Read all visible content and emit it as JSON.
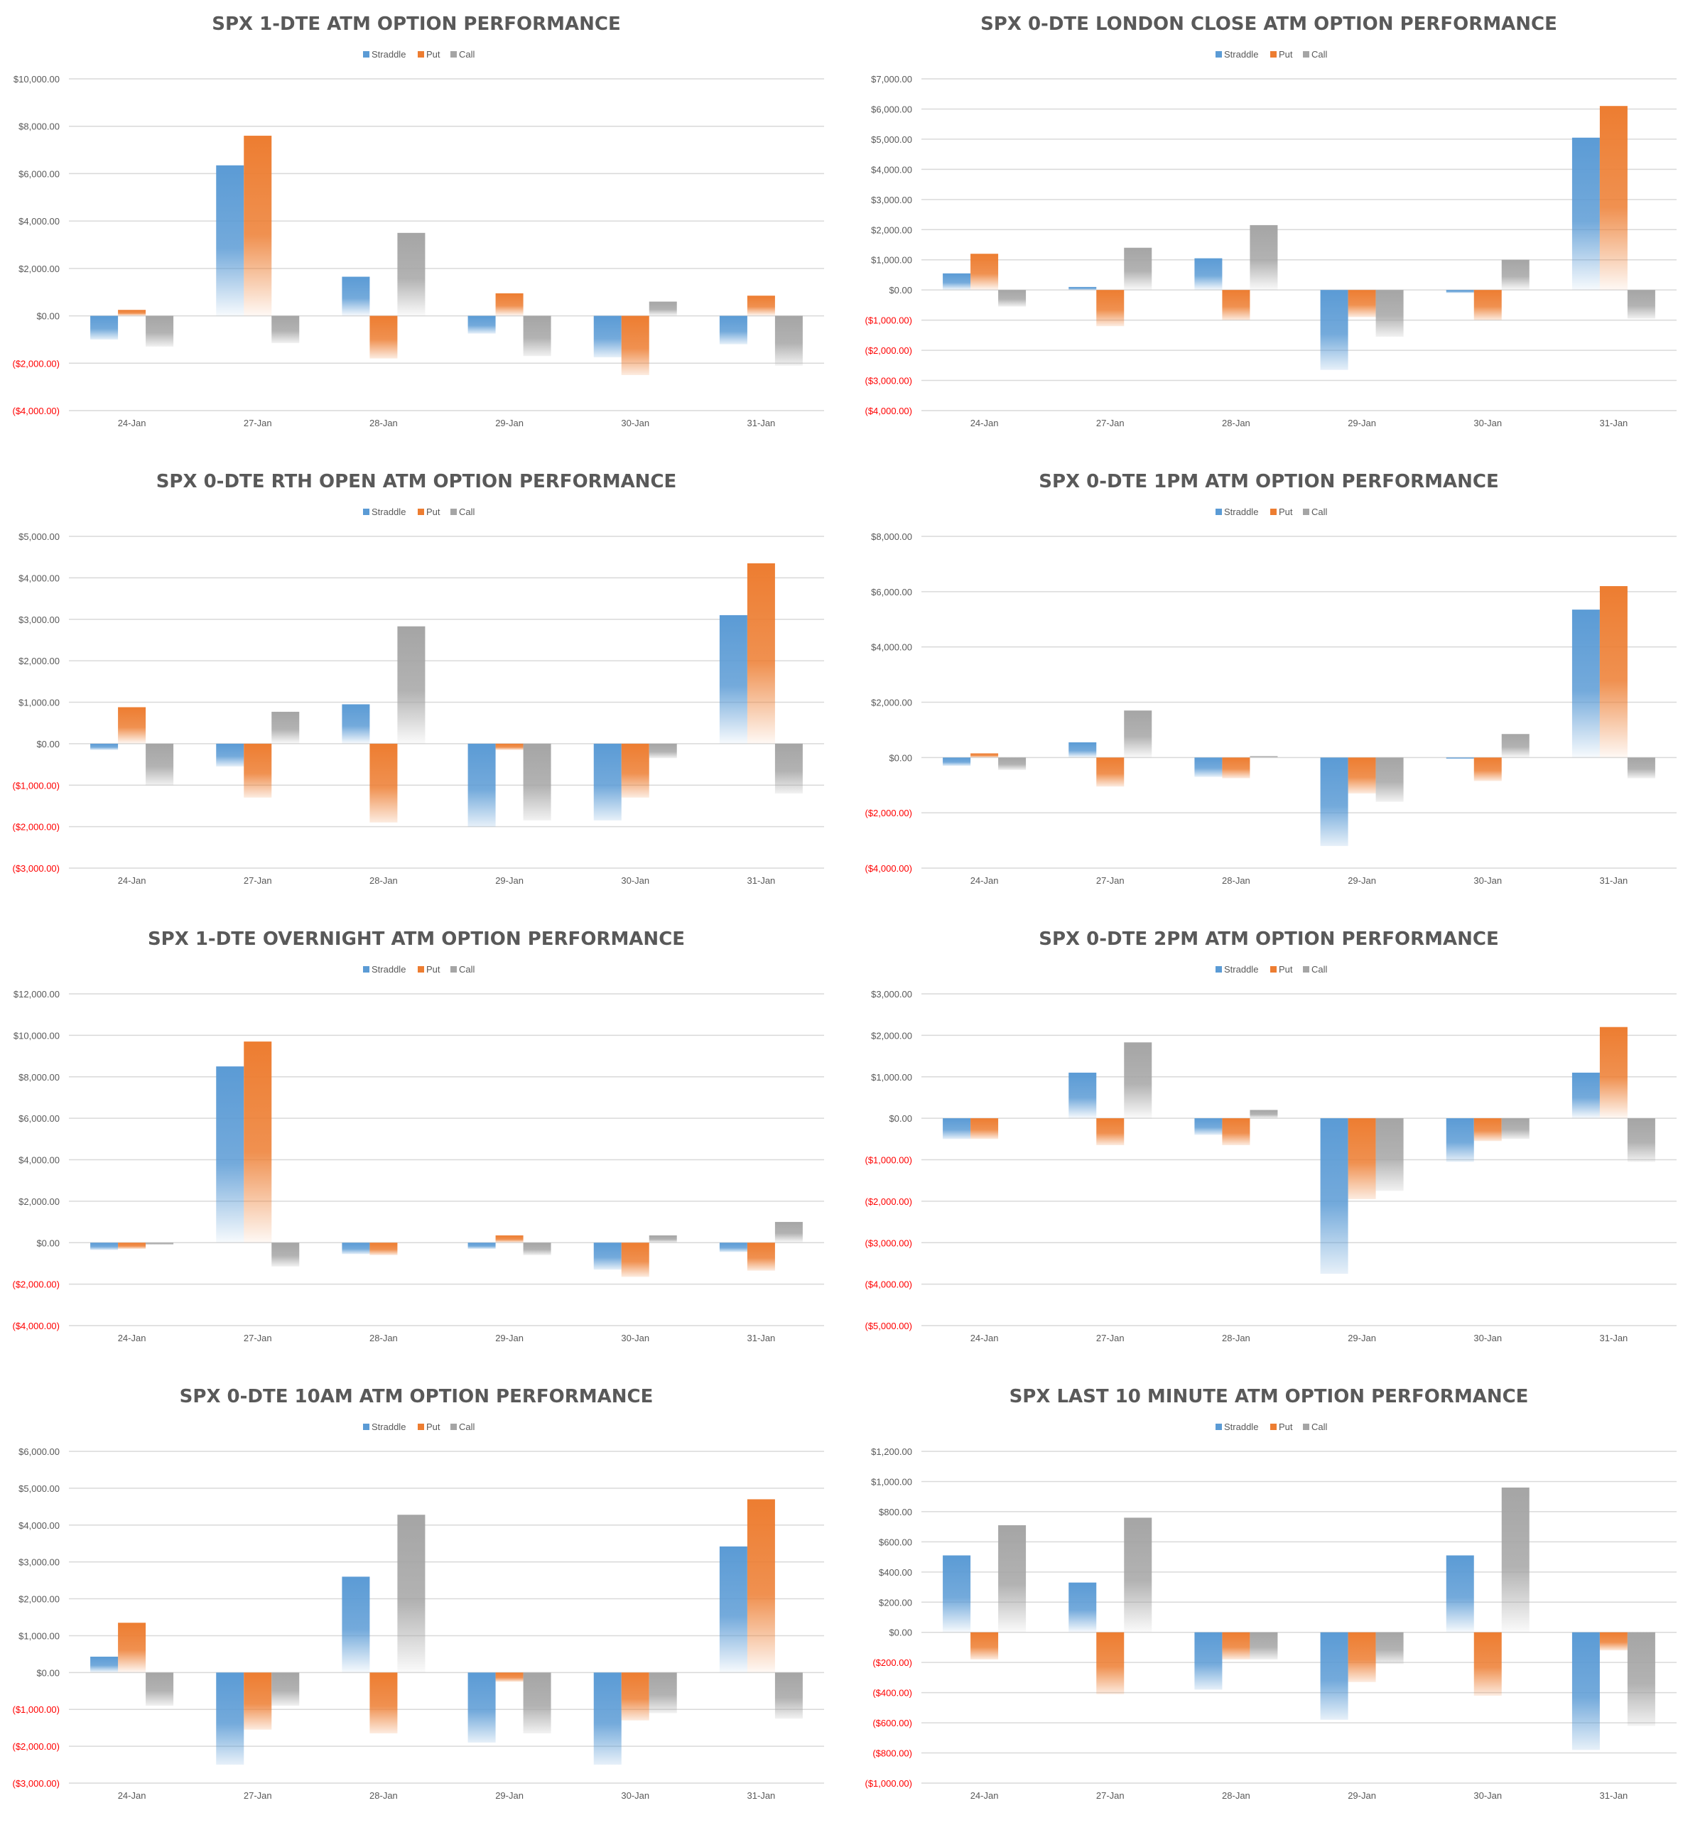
{
  "colors": {
    "straddle": "#5b9bd5",
    "put": "#ed7d31",
    "call": "#a5a5a5",
    "grid": "#d9d9d9",
    "negative_tick": "#ff0000",
    "text": "#595959"
  },
  "chart_data": [
    {
      "type": "bar",
      "title": "SPX 1-DTE ATM OPTION PERFORMANCE",
      "legend": [
        "Straddle",
        "Put",
        "Call"
      ],
      "categories": [
        "24-Jan",
        "27-Jan",
        "28-Jan",
        "29-Jan",
        "30-Jan",
        "31-Jan"
      ],
      "series": [
        {
          "name": "Straddle",
          "values": [
            -1000,
            6350,
            1650,
            -750,
            -1750,
            -1200
          ]
        },
        {
          "name": "Put",
          "values": [
            250,
            7600,
            -1800,
            950,
            -2500,
            850
          ]
        },
        {
          "name": "Call",
          "values": [
            -1300,
            -1150,
            3500,
            -1700,
            600,
            -2100
          ]
        }
      ],
      "ylim": [
        -4000,
        10000
      ],
      "yticks": [
        10000,
        8000,
        6000,
        4000,
        2000,
        0,
        -2000,
        -4000
      ],
      "ytick_labels": [
        "$10,000.00",
        "$8,000.00",
        "$6,000.00",
        "$4,000.00",
        "$2,000.00",
        "$0.00",
        "($2,000.00)",
        "($4,000.00)"
      ],
      "legend_position": "top-center"
    },
    {
      "type": "bar",
      "title": "SPX 0-DTE  LONDON CLOSE ATM OPTION PERFORMANCE",
      "legend": [
        "Straddle",
        "Put",
        "Call"
      ],
      "categories": [
        "24-Jan",
        "27-Jan",
        "28-Jan",
        "29-Jan",
        "30-Jan",
        "31-Jan"
      ],
      "series": [
        {
          "name": "Straddle",
          "values": [
            550,
            100,
            1050,
            -2650,
            -100,
            5050
          ]
        },
        {
          "name": "Put",
          "values": [
            1200,
            -1200,
            -1000,
            -900,
            -1000,
            6100
          ]
        },
        {
          "name": "Call",
          "values": [
            -550,
            1400,
            2150,
            -1550,
            1000,
            -950
          ]
        }
      ],
      "ylim": [
        -4000,
        7000
      ],
      "yticks": [
        7000,
        6000,
        5000,
        4000,
        3000,
        2000,
        1000,
        0,
        -1000,
        -2000,
        -3000,
        -4000
      ],
      "ytick_labels": [
        "$7,000.00",
        "$6,000.00",
        "$5,000.00",
        "$4,000.00",
        "$3,000.00",
        "$2,000.00",
        "$1,000.00",
        "$0.00",
        "($1,000.00)",
        "($2,000.00)",
        "($3,000.00)",
        "($4,000.00)"
      ],
      "legend_position": "top-center"
    },
    {
      "type": "bar",
      "title": "SPX 0-DTE RTH OPEN ATM OPTION PERFORMANCE",
      "legend": [
        "Straddle",
        "Put",
        "Call"
      ],
      "categories": [
        "24-Jan",
        "27-Jan",
        "28-Jan",
        "29-Jan",
        "30-Jan",
        "31-Jan"
      ],
      "series": [
        {
          "name": "Straddle",
          "values": [
            -150,
            -550,
            950,
            -2000,
            -1850,
            3100
          ]
        },
        {
          "name": "Put",
          "values": [
            880,
            -1300,
            -1900,
            -150,
            -1300,
            4350
          ]
        },
        {
          "name": "Call",
          "values": [
            -1000,
            770,
            2830,
            -1850,
            -350,
            -1200
          ]
        }
      ],
      "ylim": [
        -3000,
        5000
      ],
      "yticks": [
        5000,
        4000,
        3000,
        2000,
        1000,
        0,
        -1000,
        -2000,
        -3000
      ],
      "ytick_labels": [
        "$5,000.00",
        "$4,000.00",
        "$3,000.00",
        "$2,000.00",
        "$1,000.00",
        "$0.00",
        "($1,000.00)",
        "($2,000.00)",
        "($3,000.00)"
      ],
      "legend_position": "top-center"
    },
    {
      "type": "bar",
      "title": "SPX 0-DTE 1PM ATM OPTION PERFORMANCE",
      "legend": [
        "Straddle",
        "Put",
        "Call"
      ],
      "categories": [
        "24-Jan",
        "27-Jan",
        "28-Jan",
        "29-Jan",
        "30-Jan",
        "31-Jan"
      ],
      "series": [
        {
          "name": "Straddle",
          "values": [
            -300,
            550,
            -700,
            -3200,
            -50,
            5350
          ]
        },
        {
          "name": "Put",
          "values": [
            150,
            -1050,
            -750,
            -1300,
            -850,
            6200
          ]
        },
        {
          "name": "Call",
          "values": [
            -450,
            1700,
            50,
            -1600,
            850,
            -750
          ]
        }
      ],
      "ylim": [
        -4000,
        8000
      ],
      "yticks": [
        8000,
        6000,
        4000,
        2000,
        0,
        -2000,
        -4000
      ],
      "ytick_labels": [
        "$8,000.00",
        "$6,000.00",
        "$4,000.00",
        "$2,000.00",
        "$0.00",
        "($2,000.00)",
        "($4,000.00)"
      ],
      "legend_position": "top-center"
    },
    {
      "type": "bar",
      "title": "SPX 1-DTE OVERNIGHT ATM OPTION PERFORMANCE",
      "legend": [
        "Straddle",
        "Put",
        "Call"
      ],
      "categories": [
        "24-Jan",
        "27-Jan",
        "28-Jan",
        "29-Jan",
        "30-Jan",
        "31-Jan"
      ],
      "series": [
        {
          "name": "Straddle",
          "values": [
            -350,
            8500,
            -550,
            -300,
            -1300,
            -450
          ]
        },
        {
          "name": "Put",
          "values": [
            -300,
            9700,
            -600,
            350,
            -1650,
            -1350
          ]
        },
        {
          "name": "Call",
          "values": [
            -100,
            -1150,
            0,
            -600,
            350,
            1000
          ]
        }
      ],
      "ylim": [
        -4000,
        12000
      ],
      "yticks": [
        12000,
        10000,
        8000,
        6000,
        4000,
        2000,
        0,
        -2000,
        -4000
      ],
      "ytick_labels": [
        "$12,000.00",
        "$10,000.00",
        "$8,000.00",
        "$6,000.00",
        "$4,000.00",
        "$2,000.00",
        "$0.00",
        "($2,000.00)",
        "($4,000.00)"
      ],
      "legend_position": "top-center"
    },
    {
      "type": "bar",
      "title": "SPX 0-DTE 2PM ATM OPTION PERFORMANCE",
      "legend": [
        "Straddle",
        "Put",
        "Call"
      ],
      "categories": [
        "24-Jan",
        "27-Jan",
        "28-Jan",
        "29-Jan",
        "30-Jan",
        "31-Jan"
      ],
      "series": [
        {
          "name": "Straddle",
          "values": [
            -500,
            1100,
            -400,
            -3750,
            -1050,
            1100
          ]
        },
        {
          "name": "Put",
          "values": [
            -500,
            -650,
            -650,
            -1950,
            -550,
            2200
          ]
        },
        {
          "name": "Call",
          "values": [
            0,
            1830,
            200,
            -1750,
            -500,
            -1050
          ]
        }
      ],
      "ylim": [
        -5000,
        3000
      ],
      "yticks": [
        3000,
        2000,
        1000,
        0,
        -1000,
        -2000,
        -3000,
        -4000,
        -5000
      ],
      "ytick_labels": [
        "$3,000.00",
        "$2,000.00",
        "$1,000.00",
        "$0.00",
        "($1,000.00)",
        "($2,000.00)",
        "($3,000.00)",
        "($4,000.00)",
        "($5,000.00)"
      ],
      "legend_position": "top-center"
    },
    {
      "type": "bar",
      "title": "SPX 0-DTE 10AM ATM OPTION PERFORMANCE",
      "legend": [
        "Straddle",
        "Put",
        "Call"
      ],
      "categories": [
        "24-Jan",
        "27-Jan",
        "28-Jan",
        "29-Jan",
        "30-Jan",
        "31-Jan"
      ],
      "series": [
        {
          "name": "Straddle",
          "values": [
            430,
            -2500,
            2600,
            -1900,
            -2500,
            3420
          ]
        },
        {
          "name": "Put",
          "values": [
            1350,
            -1550,
            -1650,
            -250,
            -1300,
            4700
          ]
        },
        {
          "name": "Call",
          "values": [
            -900,
            -900,
            4280,
            -1650,
            -1100,
            -1250
          ]
        }
      ],
      "ylim": [
        -3000,
        6000
      ],
      "yticks": [
        6000,
        5000,
        4000,
        3000,
        2000,
        1000,
        0,
        -1000,
        -2000,
        -3000
      ],
      "ytick_labels": [
        "$6,000.00",
        "$5,000.00",
        "$4,000.00",
        "$3,000.00",
        "$2,000.00",
        "$1,000.00",
        "$0.00",
        "($1,000.00)",
        "($2,000.00)",
        "($3,000.00)"
      ],
      "legend_position": "top-center"
    },
    {
      "type": "bar",
      "title": "SPX LAST 10 MINUTE ATM OPTION PERFORMANCE",
      "legend": [
        "Straddle",
        "Put",
        "Call"
      ],
      "categories": [
        "24-Jan",
        "27-Jan",
        "28-Jan",
        "29-Jan",
        "30-Jan",
        "31-Jan"
      ],
      "series": [
        {
          "name": "Straddle",
          "values": [
            510,
            330,
            -380,
            -580,
            510,
            -780
          ]
        },
        {
          "name": "Put",
          "values": [
            -180,
            -410,
            -180,
            -330,
            -420,
            -120
          ]
        },
        {
          "name": "Call",
          "values": [
            710,
            760,
            -180,
            -210,
            960,
            -620
          ]
        }
      ],
      "ylim": [
        -1000,
        1200
      ],
      "yticks": [
        1200,
        1000,
        800,
        600,
        400,
        200,
        0,
        -200,
        -400,
        -600,
        -800,
        -1000
      ],
      "ytick_labels": [
        "$1,200.00",
        "$1,000.00",
        "$800.00",
        "$600.00",
        "$400.00",
        "$200.00",
        "$0.00",
        "($200.00)",
        "($400.00)",
        "($600.00)",
        "($800.00)",
        "($1,000.00)"
      ],
      "legend_position": "top-center"
    }
  ]
}
